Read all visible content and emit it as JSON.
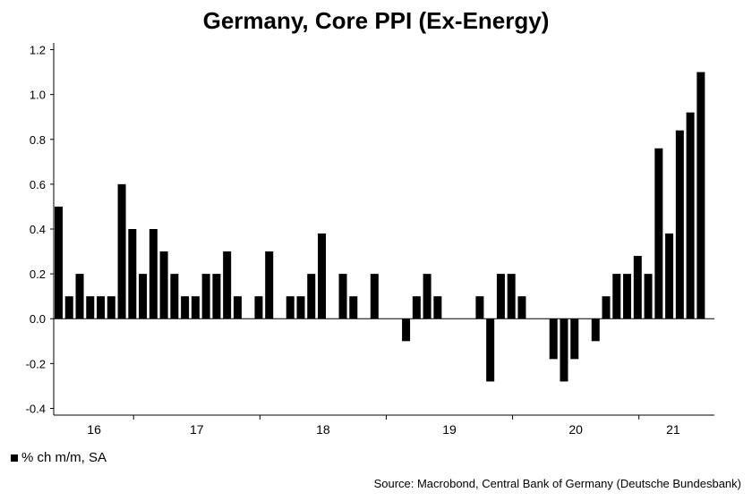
{
  "chart_data": {
    "type": "bar",
    "title": "Germany, Core PPI (Ex-Energy)",
    "series": [
      {
        "name": "% ch m/m, SA",
        "color": "#000000",
        "values": [
          0.5,
          0.1,
          0.2,
          0.1,
          0.1,
          0.1,
          0.6,
          0.4,
          0.2,
          0.4,
          0.3,
          0.2,
          0.1,
          0.1,
          0.2,
          0.2,
          0.3,
          0.1,
          0.0,
          0.1,
          0.3,
          0.0,
          0.1,
          0.1,
          0.2,
          0.38,
          0.0,
          0.2,
          0.1,
          0.0,
          0.2,
          0.0,
          0.0,
          -0.1,
          0.1,
          0.2,
          0.1,
          0.0,
          0.0,
          0.0,
          0.1,
          -0.28,
          0.2,
          0.2,
          0.1,
          0.0,
          0.0,
          -0.18,
          -0.28,
          -0.18,
          0.0,
          -0.1,
          0.1,
          0.2,
          0.2,
          0.28,
          0.2,
          0.76,
          0.38,
          0.84,
          0.92,
          1.1
        ]
      }
    ],
    "x_ticks": [
      "16",
      "17",
      "18",
      "19",
      "20",
      "21"
    ],
    "y_ticks": [
      "-0.4",
      "-0.2",
      "0.0",
      "0.2",
      "0.4",
      "0.6",
      "0.8",
      "1.0",
      "1.2"
    ],
    "ylim": [
      -0.43,
      1.23
    ],
    "grid": false,
    "legend_position": "bottom-left",
    "source": "Source: Macrobond, Central Bank of Germany (Deutsche Bundesbank)"
  }
}
